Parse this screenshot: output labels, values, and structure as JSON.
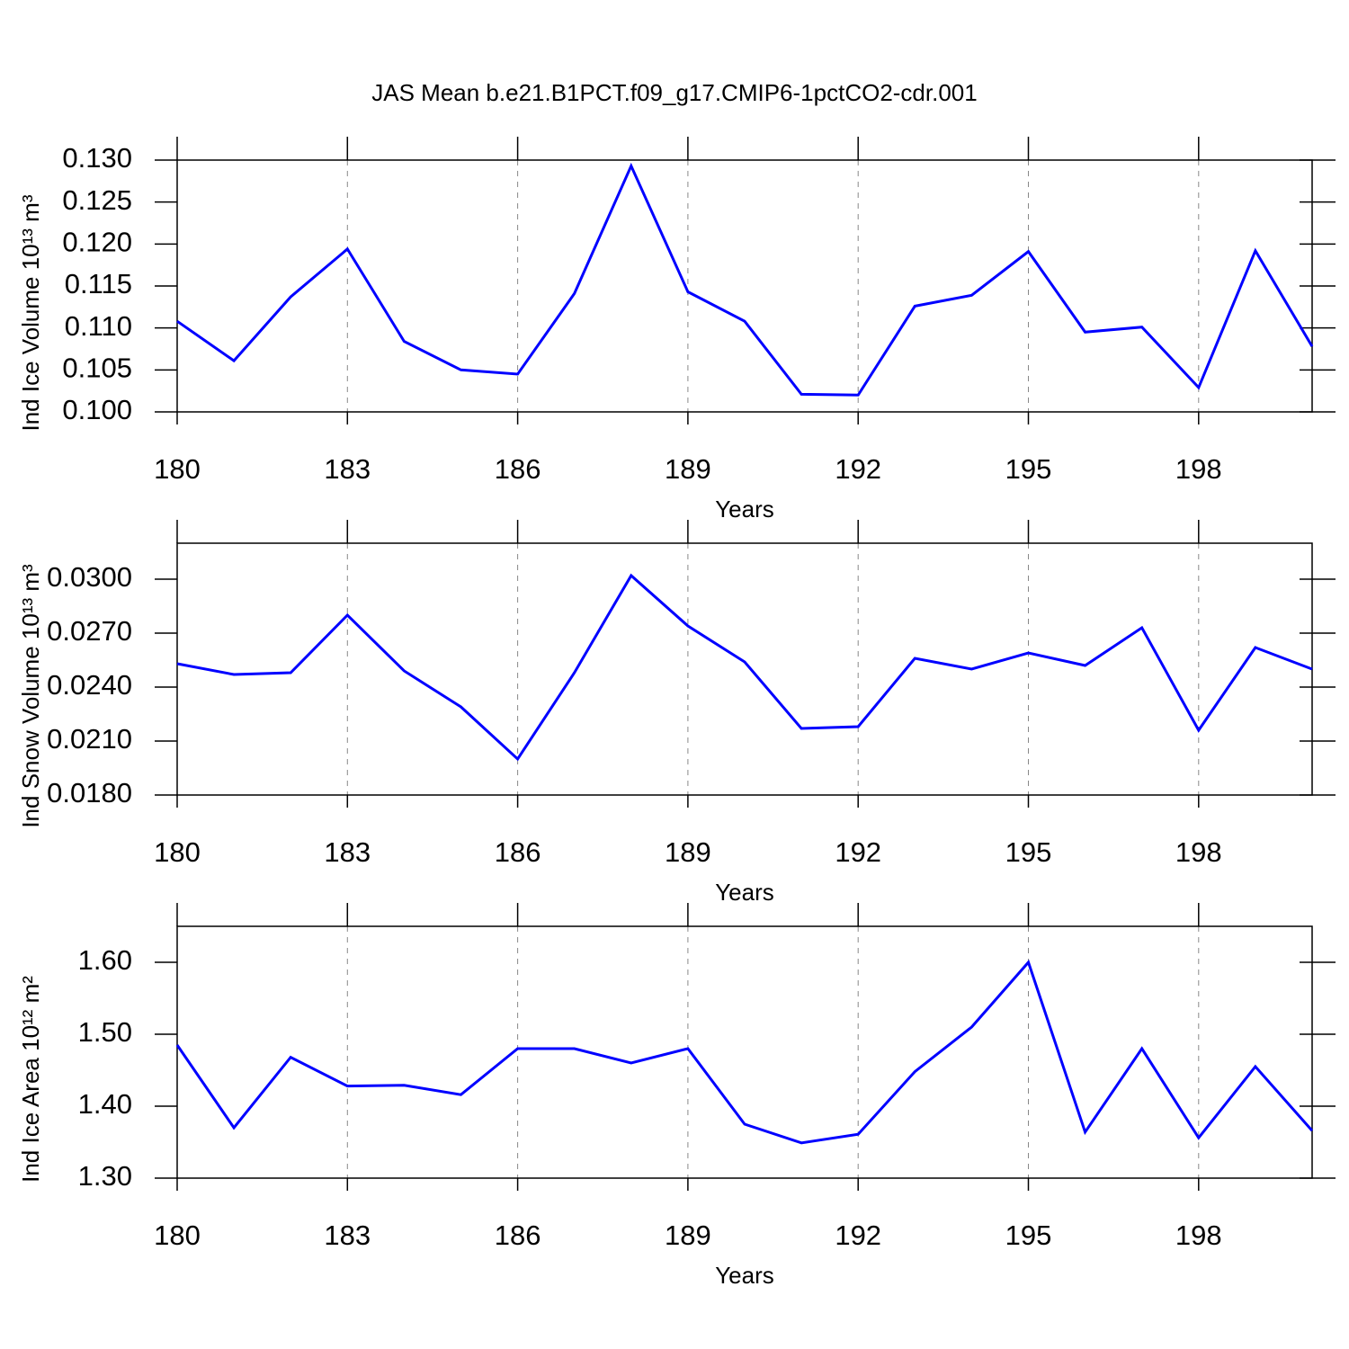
{
  "title": "JAS Mean b.e21.B1PCT.f09_g17.CMIP6-1pctCO2-cdr.001",
  "chart_data": [
    {
      "type": "line",
      "xlabel": "Years",
      "ylabel": "Ind Ice Volume 10¹³ m³",
      "x": [
        180,
        181,
        182,
        183,
        184,
        185,
        186,
        187,
        188,
        189,
        190,
        191,
        192,
        193,
        194,
        195,
        196,
        197,
        198,
        199,
        200
      ],
      "series": [
        {
          "color": "#0000ff",
          "values": [
            0.1108,
            0.1061,
            0.1137,
            0.1194,
            0.1084,
            0.105,
            0.1045,
            0.1141,
            0.1293,
            0.1143,
            0.1108,
            0.1021,
            0.102,
            0.1126,
            0.1139,
            0.1191,
            0.1095,
            0.1101,
            0.1029,
            0.1192,
            0.1078
          ]
        }
      ],
      "xlim": [
        180,
        200
      ],
      "xticks": [
        180,
        183,
        186,
        189,
        192,
        195,
        198
      ],
      "ylim": [
        0.1,
        0.13
      ],
      "yticks": [
        {
          "value": 0.1,
          "label": "0.100"
        },
        {
          "value": 0.105,
          "label": "0.105"
        },
        {
          "value": 0.11,
          "label": "0.110"
        },
        {
          "value": 0.115,
          "label": "0.115"
        },
        {
          "value": 0.12,
          "label": "0.120"
        },
        {
          "value": 0.125,
          "label": "0.125"
        },
        {
          "value": 0.13,
          "label": "0.130"
        }
      ],
      "grid": "x"
    },
    {
      "type": "line",
      "xlabel": "Years",
      "ylabel": "Ind Snow Volume 10¹³ m³",
      "x": [
        180,
        181,
        182,
        183,
        184,
        185,
        186,
        187,
        188,
        189,
        190,
        191,
        192,
        193,
        194,
        195,
        196,
        197,
        198,
        199,
        200
      ],
      "series": [
        {
          "color": "#0000ff",
          "values": [
            0.0253,
            0.0247,
            0.0248,
            0.028,
            0.0249,
            0.0229,
            0.02,
            0.0248,
            0.0302,
            0.0274,
            0.0254,
            0.0217,
            0.0218,
            0.0256,
            0.025,
            0.0259,
            0.0252,
            0.0273,
            0.0216,
            0.0262,
            0.025
          ]
        }
      ],
      "xlim": [
        180,
        200
      ],
      "xticks": [
        180,
        183,
        186,
        189,
        192,
        195,
        198
      ],
      "ylim": [
        0.018,
        0.032
      ],
      "yticks": [
        {
          "value": 0.018,
          "label": "0.0180"
        },
        {
          "value": 0.021,
          "label": "0.0210"
        },
        {
          "value": 0.024,
          "label": "0.0240"
        },
        {
          "value": 0.027,
          "label": "0.0270"
        },
        {
          "value": 0.03,
          "label": "0.0300"
        }
      ],
      "grid": "x"
    },
    {
      "type": "line",
      "xlabel": "Years",
      "ylabel": "Ind Ice Area 10¹² m²",
      "x": [
        180,
        181,
        182,
        183,
        184,
        185,
        186,
        187,
        188,
        189,
        190,
        191,
        192,
        193,
        194,
        195,
        196,
        197,
        198,
        199,
        200
      ],
      "series": [
        {
          "color": "#0000ff",
          "values": [
            1.485,
            1.37,
            1.468,
            1.428,
            1.429,
            1.416,
            1.48,
            1.48,
            1.46,
            1.48,
            1.375,
            1.349,
            1.361,
            1.448,
            1.51,
            1.6,
            1.364,
            1.48,
            1.356,
            1.455,
            1.366
          ]
        }
      ],
      "xlim": [
        180,
        200
      ],
      "xticks": [
        180,
        183,
        186,
        189,
        192,
        195,
        198
      ],
      "ylim": [
        1.3,
        1.65
      ],
      "yticks": [
        {
          "value": 1.3,
          "label": "1.30"
        },
        {
          "value": 1.4,
          "label": "1.40"
        },
        {
          "value": 1.5,
          "label": "1.50"
        },
        {
          "value": 1.6,
          "label": "1.60"
        }
      ],
      "grid": "x"
    }
  ]
}
